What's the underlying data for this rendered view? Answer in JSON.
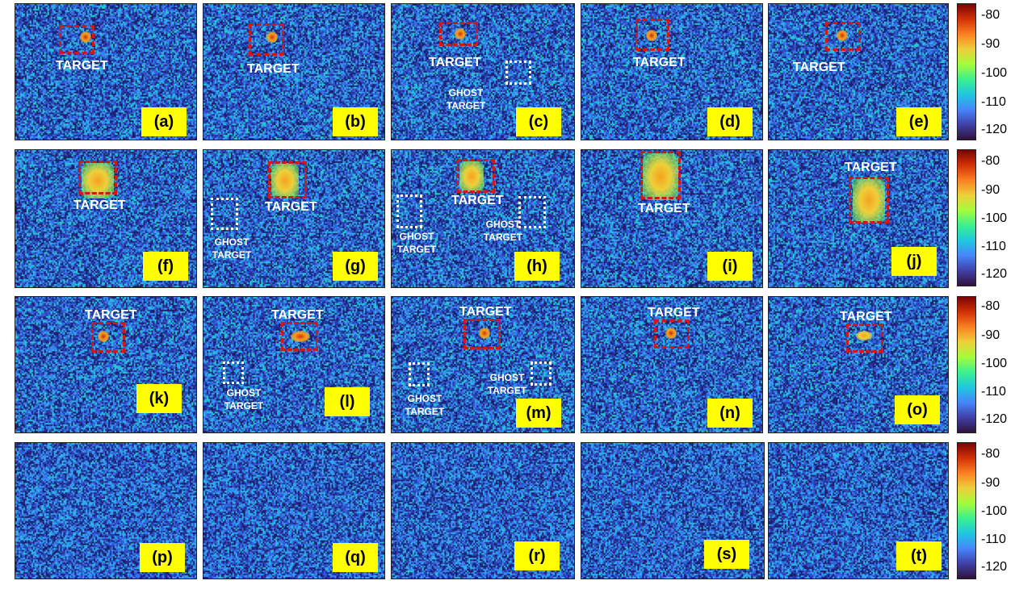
{
  "target_label": "TARGET",
  "ghost_label_line1": "GHOST",
  "ghost_label_line2": "TARGET",
  "colorbar_ticks": [
    "-80",
    "-90",
    "-100",
    "-110",
    "-120"
  ],
  "panels": [
    {
      "label": "(a)",
      "target": true,
      "ghost": 0
    },
    {
      "label": "(b)",
      "target": true,
      "ghost": 0
    },
    {
      "label": "(c)",
      "target": true,
      "ghost": 1
    },
    {
      "label": "(d)",
      "target": true,
      "ghost": 0
    },
    {
      "label": "(e)",
      "target": true,
      "ghost": 0
    },
    {
      "label": "(f)",
      "target": true,
      "ghost": 0
    },
    {
      "label": "(g)",
      "target": true,
      "ghost": 1
    },
    {
      "label": "(h)",
      "target": true,
      "ghost": 2
    },
    {
      "label": "(i)",
      "target": true,
      "ghost": 0
    },
    {
      "label": "(j)",
      "target": true,
      "ghost": 0
    },
    {
      "label": "(k)",
      "target": true,
      "ghost": 0
    },
    {
      "label": "(l)",
      "target": true,
      "ghost": 1
    },
    {
      "label": "(m)",
      "target": true,
      "ghost": 2
    },
    {
      "label": "(n)",
      "target": true,
      "ghost": 0
    },
    {
      "label": "(o)",
      "target": true,
      "ghost": 0
    },
    {
      "label": "(p)",
      "target": false,
      "ghost": 0
    },
    {
      "label": "(q)",
      "target": false,
      "ghost": 0
    },
    {
      "label": "(r)",
      "target": false,
      "ghost": 0
    },
    {
      "label": "(s)",
      "target": false,
      "ghost": 0
    },
    {
      "label": "(t)",
      "target": false,
      "ghost": 0
    }
  ]
}
